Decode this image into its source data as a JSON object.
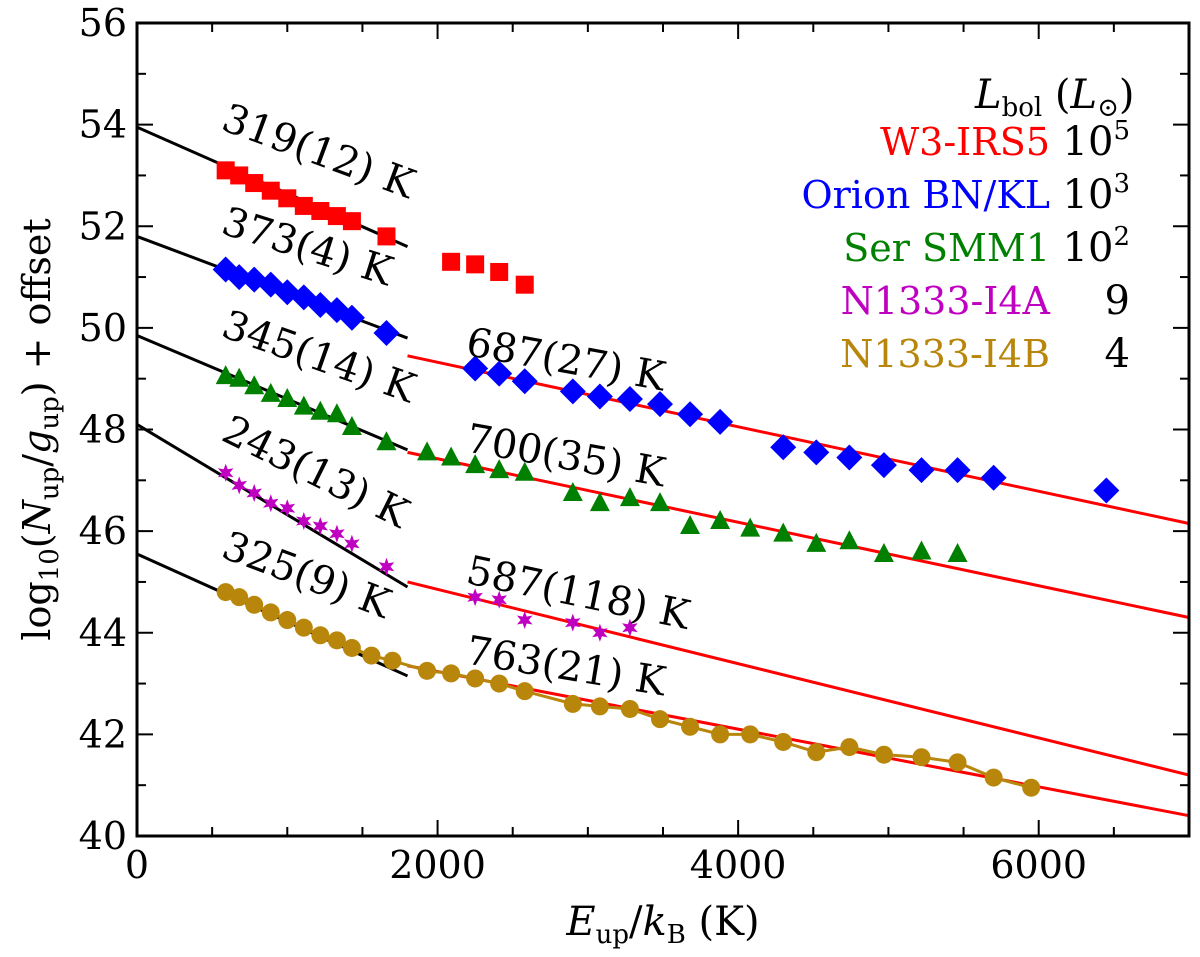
{
  "chart_data": {
    "type": "scatter",
    "xlabel": "E_up/k_B (K)",
    "ylabel": "log10(N_up/g_up) + offset",
    "xlim": [
      0,
      7000
    ],
    "ylim": [
      40,
      56
    ],
    "xticks": [
      0,
      2000,
      4000,
      6000
    ],
    "yticks": [
      40,
      42,
      44,
      46,
      48,
      50,
      52,
      54,
      56
    ],
    "legend": {
      "position": "top-right",
      "header": "L_bol (L_sun)",
      "entries": [
        {
          "name": "W3-IRS5",
          "lbol": "10^5",
          "color": "#ff0000"
        },
        {
          "name": "Orion BN/KL",
          "lbol": "10^3",
          "color": "#0000ff"
        },
        {
          "name": "Ser SMM1",
          "lbol": "10^2",
          "color": "#008000"
        },
        {
          "name": "N1333-I4A",
          "lbol": "9",
          "color": "#c000c0"
        },
        {
          "name": "N1333-I4B",
          "lbol": "4",
          "color": "#b8860b"
        }
      ]
    },
    "series": [
      {
        "name": "W3-IRS5",
        "marker": "square",
        "color": "#ff0000",
        "x": [
          590,
          680,
          780,
          890,
          1000,
          1110,
          1220,
          1330,
          1430,
          1660,
          2090,
          2250,
          2410,
          2580
        ],
        "y": [
          53.1,
          53.0,
          52.85,
          52.7,
          52.55,
          52.4,
          52.3,
          52.2,
          52.1,
          51.8,
          51.3,
          51.25,
          51.1,
          50.85
        ]
      },
      {
        "name": "Orion BN/KL",
        "marker": "diamond",
        "color": "#0000ff",
        "x": [
          590,
          680,
          780,
          890,
          1000,
          1110,
          1220,
          1330,
          1430,
          1660,
          2250,
          2410,
          2580,
          2900,
          3080,
          3280,
          3480,
          3680,
          3880,
          4300,
          4520,
          4740,
          4970,
          5220,
          5460,
          5700,
          6450
        ],
        "y": [
          51.15,
          51.0,
          50.95,
          50.85,
          50.7,
          50.6,
          50.45,
          50.35,
          50.2,
          49.9,
          49.2,
          49.1,
          48.95,
          48.75,
          48.65,
          48.6,
          48.5,
          48.3,
          48.15,
          47.65,
          47.55,
          47.45,
          47.3,
          47.2,
          47.2,
          47.05,
          46.8
        ]
      },
      {
        "name": "Ser SMM1",
        "marker": "triangle",
        "color": "#008000",
        "x": [
          590,
          680,
          780,
          890,
          1000,
          1110,
          1220,
          1330,
          1430,
          1660,
          1930,
          2090,
          2250,
          2410,
          2580,
          2900,
          3080,
          3280,
          3480,
          3680,
          3880,
          4080,
          4300,
          4520,
          4740,
          4970,
          5220,
          5460
        ],
        "y": [
          49.05,
          49.0,
          48.85,
          48.7,
          48.6,
          48.45,
          48.35,
          48.3,
          48.05,
          47.75,
          47.55,
          47.45,
          47.3,
          47.2,
          47.15,
          46.75,
          46.55,
          46.65,
          46.55,
          46.1,
          46.2,
          46.05,
          45.95,
          45.75,
          45.8,
          45.55,
          45.6,
          45.55
        ]
      },
      {
        "name": "N1333-I4A",
        "marker": "star",
        "color": "#c000c0",
        "x": [
          590,
          680,
          780,
          890,
          1000,
          1110,
          1220,
          1330,
          1430,
          1660,
          2250,
          2410,
          2580,
          2900,
          3080,
          3280
        ],
        "y": [
          47.15,
          46.9,
          46.75,
          46.55,
          46.45,
          46.2,
          46.1,
          45.95,
          45.75,
          45.3,
          44.7,
          44.65,
          44.25,
          44.2,
          44.0,
          44.1
        ]
      },
      {
        "name": "N1333-I4B",
        "marker": "circle",
        "color": "#b8860b",
        "connected": true,
        "x": [
          590,
          680,
          780,
          890,
          1000,
          1110,
          1220,
          1330,
          1430,
          1560,
          1700,
          1930,
          2090,
          2250,
          2410,
          2580,
          2900,
          3080,
          3280,
          3480,
          3680,
          3880,
          4080,
          4300,
          4520,
          4740,
          4970,
          5220,
          5460,
          5700,
          5950
        ],
        "y": [
          44.8,
          44.7,
          44.55,
          44.4,
          44.25,
          44.1,
          43.95,
          43.85,
          43.7,
          43.55,
          43.45,
          43.25,
          43.2,
          43.1,
          43.0,
          42.85,
          42.6,
          42.55,
          42.5,
          42.3,
          42.15,
          42.0,
          42.0,
          41.85,
          41.65,
          41.75,
          41.6,
          41.55,
          41.45,
          41.15,
          40.95
        ]
      }
    ],
    "fits": [
      {
        "label": "319(12) K",
        "color": "#000000",
        "x": [
          0,
          1800
        ],
        "y": [
          53.95,
          51.6
        ]
      },
      {
        "label": "373(4) K",
        "color": "#000000",
        "x": [
          0,
          1800
        ],
        "y": [
          51.8,
          49.8
        ]
      },
      {
        "label": "345(14) K",
        "color": "#000000",
        "x": [
          0,
          1800
        ],
        "y": [
          49.85,
          47.6
        ]
      },
      {
        "label": "243(13) K",
        "color": "#000000",
        "x": [
          0,
          1800
        ],
        "y": [
          48.1,
          44.9
        ]
      },
      {
        "label": "325(9) K",
        "color": "#000000",
        "x": [
          0,
          1800
        ],
        "y": [
          45.55,
          43.15
        ]
      },
      {
        "label": "687(27) K",
        "color": "#ff0000",
        "x": [
          1800,
          7000
        ],
        "y": [
          49.45,
          46.15
        ]
      },
      {
        "label": "700(35) K",
        "color": "#ff0000",
        "x": [
          1800,
          7000
        ],
        "y": [
          47.55,
          44.3
        ]
      },
      {
        "label": "587(118) K",
        "color": "#ff0000",
        "x": [
          1800,
          7000
        ],
        "y": [
          45.0,
          41.2
        ]
      },
      {
        "label": "763(21) K",
        "color": "#ff0000",
        "x": [
          1800,
          7000
        ],
        "y": [
          43.35,
          40.4
        ]
      }
    ]
  }
}
